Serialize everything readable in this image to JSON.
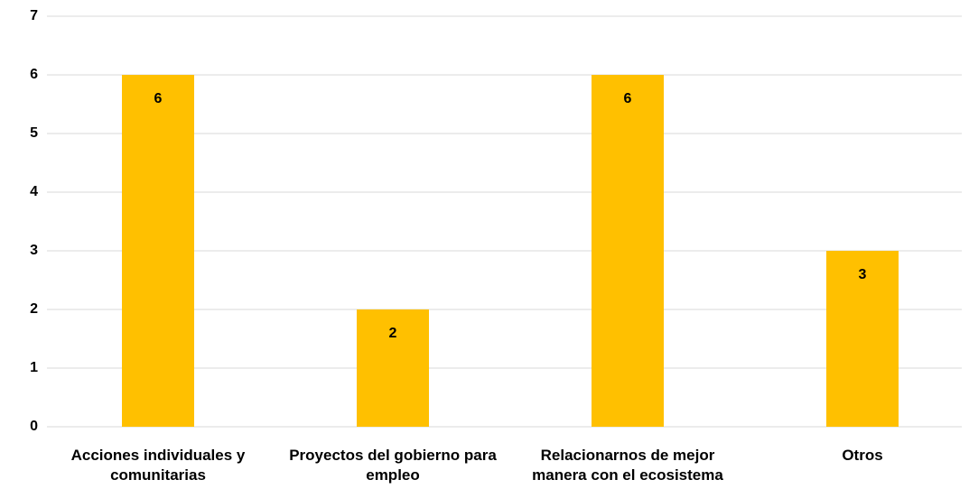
{
  "chart_data": {
    "type": "bar",
    "categories": [
      "Acciones individuales y comunitarias",
      "Proyectos del gobierno para empleo",
      "Relacionarnos de mejor manera con el ecosistema",
      "Otros"
    ],
    "values": [
      6,
      2,
      6,
      3
    ],
    "color": "#ffc000",
    "ylim": [
      0,
      7
    ],
    "yticks": [
      0,
      1,
      2,
      3,
      4,
      5,
      6,
      7
    ],
    "grid": true
  }
}
